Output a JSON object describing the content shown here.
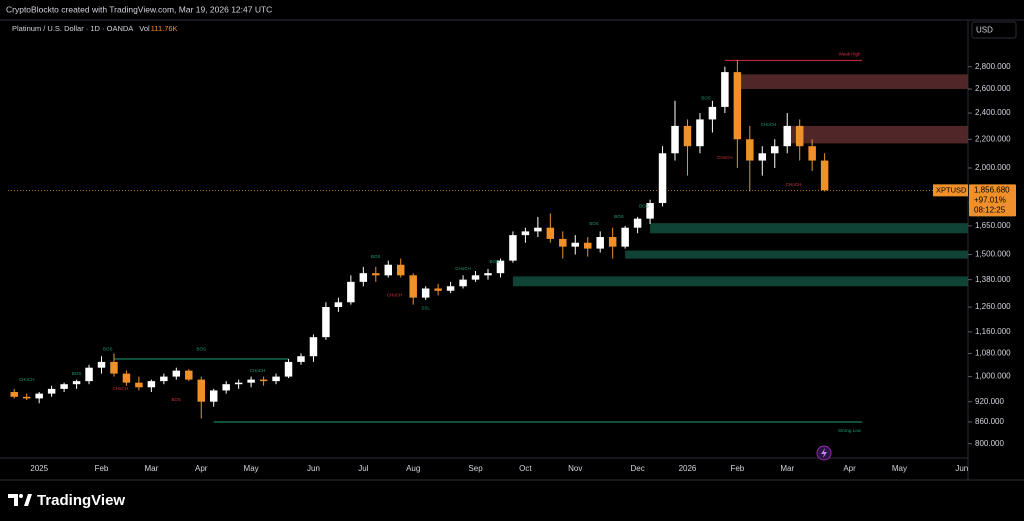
{
  "chart_data": {
    "type": "candlestick",
    "header": "CryptoBlockto created with TradingView.com, Mar 19, 2026 12:47 UTC",
    "title": "Platinum / U.S. Dollar · 1D · OANDA",
    "volume_label": "Vol",
    "volume": "111.76K",
    "currency": "USD",
    "symbol": "XPTUSD",
    "last_price": {
      "value": 1856.68,
      "label": "1,856.680"
    },
    "change": "+97.01%",
    "countdown": "08:12:25",
    "brand": "TradingView",
    "log_scale": true,
    "up_color": "#ffffff",
    "down_color": "#f0902a",
    "categories": [
      null,
      null,
      "2025",
      null,
      null,
      null,
      null,
      "Feb",
      null,
      null,
      null,
      "Mar",
      null,
      null,
      null,
      "Apr",
      null,
      null,
      null,
      "May",
      null,
      null,
      null,
      null,
      "Jun",
      null,
      null,
      null,
      "Jul",
      null,
      null,
      null,
      "Aug",
      null,
      null,
      null,
      null,
      "Sep",
      null,
      null,
      null,
      "Oct",
      null,
      null,
      null,
      "Nov",
      null,
      null,
      null,
      null,
      "Dec",
      null,
      null,
      null,
      "2026",
      null,
      null,
      null,
      "Feb",
      null,
      null,
      null,
      "Mar",
      null,
      null,
      null,
      null,
      "Apr",
      null,
      null,
      null,
      "May",
      null,
      null,
      null,
      null,
      "Jun"
    ],
    "open": [
      950,
      935,
      930,
      945,
      960,
      975,
      985,
      1030,
      1050,
      1010,
      980,
      965,
      985,
      1000,
      1020,
      990,
      920,
      955,
      975,
      980,
      990,
      985,
      1000,
      1050,
      1070,
      1140,
      1260,
      1280,
      1370,
      1410,
      1400,
      1450,
      1400,
      1300,
      1340,
      1330,
      1350,
      1380,
      1400,
      1410,
      1470,
      1600,
      1620,
      1640,
      1580,
      1540,
      1560,
      1530,
      1590,
      1540,
      1640,
      1690,
      1780,
      2100,
      2300,
      2150,
      2350,
      2450,
      2750,
      2200,
      2050,
      2100,
      2150,
      2300,
      2150,
      2050,
      null,
      null,
      null,
      null,
      null,
      null,
      null,
      null,
      null,
      null,
      null
    ],
    "high": [
      960,
      945,
      950,
      970,
      980,
      990,
      1040,
      1070,
      1080,
      1020,
      1000,
      990,
      1010,
      1030,
      1025,
      1000,
      960,
      985,
      990,
      1000,
      1000,
      1010,
      1060,
      1080,
      1150,
      1280,
      1300,
      1400,
      1440,
      1440,
      1470,
      1480,
      1410,
      1350,
      1360,
      1370,
      1400,
      1420,
      1430,
      1480,
      1620,
      1640,
      1700,
      1720,
      1620,
      1600,
      1590,
      1620,
      1640,
      1650,
      1700,
      1800,
      2150,
      2500,
      2350,
      2400,
      2500,
      2800,
      2860,
      2300,
      2150,
      2200,
      2400,
      2350,
      2200,
      2100,
      null,
      null,
      null,
      null,
      null,
      null,
      null,
      null,
      null,
      null,
      null
    ],
    "low": [
      930,
      925,
      915,
      935,
      950,
      960,
      975,
      1010,
      1000,
      970,
      955,
      950,
      975,
      990,
      985,
      870,
      905,
      945,
      960,
      965,
      970,
      975,
      995,
      1040,
      1050,
      1130,
      1240,
      1270,
      1350,
      1370,
      1390,
      1390,
      1270,
      1290,
      1310,
      1320,
      1340,
      1370,
      1380,
      1390,
      1460,
      1560,
      1590,
      1560,
      1480,
      1500,
      1490,
      1510,
      1480,
      1530,
      1610,
      1660,
      1760,
      2050,
      1950,
      2100,
      2250,
      2400,
      2000,
      1850,
      1950,
      2000,
      2100,
      2050,
      1980,
      1850,
      null,
      null,
      null,
      null,
      null,
      null,
      null,
      null,
      null,
      null,
      null
    ],
    "close": [
      935,
      930,
      945,
      960,
      975,
      985,
      1030,
      1050,
      1010,
      980,
      965,
      985,
      1000,
      1020,
      990,
      920,
      955,
      975,
      980,
      990,
      985,
      1000,
      1050,
      1070,
      1140,
      1260,
      1280,
      1370,
      1410,
      1400,
      1450,
      1400,
      1300,
      1340,
      1330,
      1350,
      1380,
      1400,
      1410,
      1470,
      1600,
      1620,
      1640,
      1580,
      1540,
      1560,
      1530,
      1590,
      1540,
      1640,
      1690,
      1780,
      2100,
      2300,
      2150,
      2350,
      2450,
      2750,
      2200,
      2050,
      2100,
      2150,
      2300,
      2150,
      2050,
      1856.68,
      null,
      null,
      null,
      null,
      null,
      null,
      null,
      null,
      null,
      null,
      null
    ],
    "ylim": [
      763,
      3270
    ],
    "yticks": [
      {
        "value": 800,
        "label": "800.000"
      },
      {
        "value": 860,
        "label": "860.000"
      },
      {
        "value": 920,
        "label": "920.000"
      },
      {
        "value": 1000,
        "label": "1,000.000"
      },
      {
        "value": 1080,
        "label": "1,080.000"
      },
      {
        "value": 1160,
        "label": "1,160.000"
      },
      {
        "value": 1260,
        "label": "1,260.000"
      },
      {
        "value": 1380,
        "label": "1,380.000"
      },
      {
        "value": 1500,
        "label": "1,500.000"
      },
      {
        "value": 1650,
        "label": "1,650.000"
      },
      {
        "value": 2000,
        "label": "2,000.000"
      },
      {
        "value": 2200,
        "label": "2,200.000"
      },
      {
        "value": 2400,
        "label": "2,400.000"
      },
      {
        "value": 2600,
        "label": "2,600.000"
      },
      {
        "value": 2800,
        "label": "2,800.000"
      }
    ],
    "zones": [
      {
        "from": 58,
        "low": 2600,
        "high": 2730,
        "color": "#5a2a2e"
      },
      {
        "from": 62,
        "low": 2170,
        "high": 2300,
        "color": "#5a2a2e"
      },
      {
        "from": 51,
        "low": 1610,
        "high": 1665,
        "color": "#0f4a3c"
      },
      {
        "from": 49,
        "low": 1480,
        "high": 1520,
        "color": "#0f4a3c"
      },
      {
        "from": 40,
        "low": 1350,
        "high": 1395,
        "color": "#0f4a3c"
      }
    ],
    "lines": [
      {
        "from": 8,
        "to": 22,
        "value": 1060,
        "color": "#1f9c7a"
      },
      {
        "from": 57,
        "to": 68,
        "value": 2860,
        "color": "#d2333f"
      },
      {
        "from": 16,
        "to": 68,
        "value": 860,
        "color": "#1f9c7a"
      }
    ],
    "annotations": [
      {
        "text": "CHoCH",
        "x": 1,
        "y": 990,
        "color": "#1f9c7a"
      },
      {
        "text": "BOS",
        "x": 5,
        "y": 1010,
        "color": "#1f9c7a"
      },
      {
        "text": "BOS",
        "x": 7.5,
        "y": 1095,
        "color": "#1f9c7a"
      },
      {
        "text": "CHoCH",
        "x": 8.5,
        "y": 960,
        "color": "#d2333f"
      },
      {
        "text": "BOS",
        "x": 15,
        "y": 1095,
        "color": "#1f9c7a"
      },
      {
        "text": "BOS",
        "x": 13,
        "y": 925,
        "color": "#d2333f"
      },
      {
        "text": "CHoCH",
        "x": 19.5,
        "y": 1020,
        "color": "#1f9c7a"
      },
      {
        "text": "BOS",
        "x": 29,
        "y": 1490,
        "color": "#1f9c7a"
      },
      {
        "text": "CHoCH",
        "x": 30.5,
        "y": 1310,
        "color": "#d2333f"
      },
      {
        "text": "SSL",
        "x": 33,
        "y": 1255,
        "color": "#1f9c7a"
      },
      {
        "text": "CHoCH",
        "x": 36,
        "y": 1430,
        "color": "#1f9c7a"
      },
      {
        "text": "BOS",
        "x": 38.5,
        "y": 1465,
        "color": "#1f9c7a"
      },
      {
        "text": "BOS",
        "x": 46.5,
        "y": 1660,
        "color": "#1f9c7a"
      },
      {
        "text": "BOS",
        "x": 48.5,
        "y": 1700,
        "color": "#1f9c7a"
      },
      {
        "text": "BOS",
        "x": 50.5,
        "y": 1760,
        "color": "#1f9c7a"
      },
      {
        "text": "BOS",
        "x": 55.5,
        "y": 2520,
        "color": "#1f9c7a"
      },
      {
        "text": "CHoCH",
        "x": 57,
        "y": 2070,
        "color": "#d2333f"
      },
      {
        "text": "CHoCH",
        "x": 60.5,
        "y": 2310,
        "color": "#1f9c7a"
      },
      {
        "text": "CHoCH",
        "x": 62.5,
        "y": 1890,
        "color": "#d2333f"
      },
      {
        "text": "Weak High",
        "x": 67,
        "y": 2920,
        "color": "#d2333f"
      },
      {
        "text": "Strong Low",
        "x": 67,
        "y": 835,
        "color": "#1f9c7a"
      }
    ]
  }
}
